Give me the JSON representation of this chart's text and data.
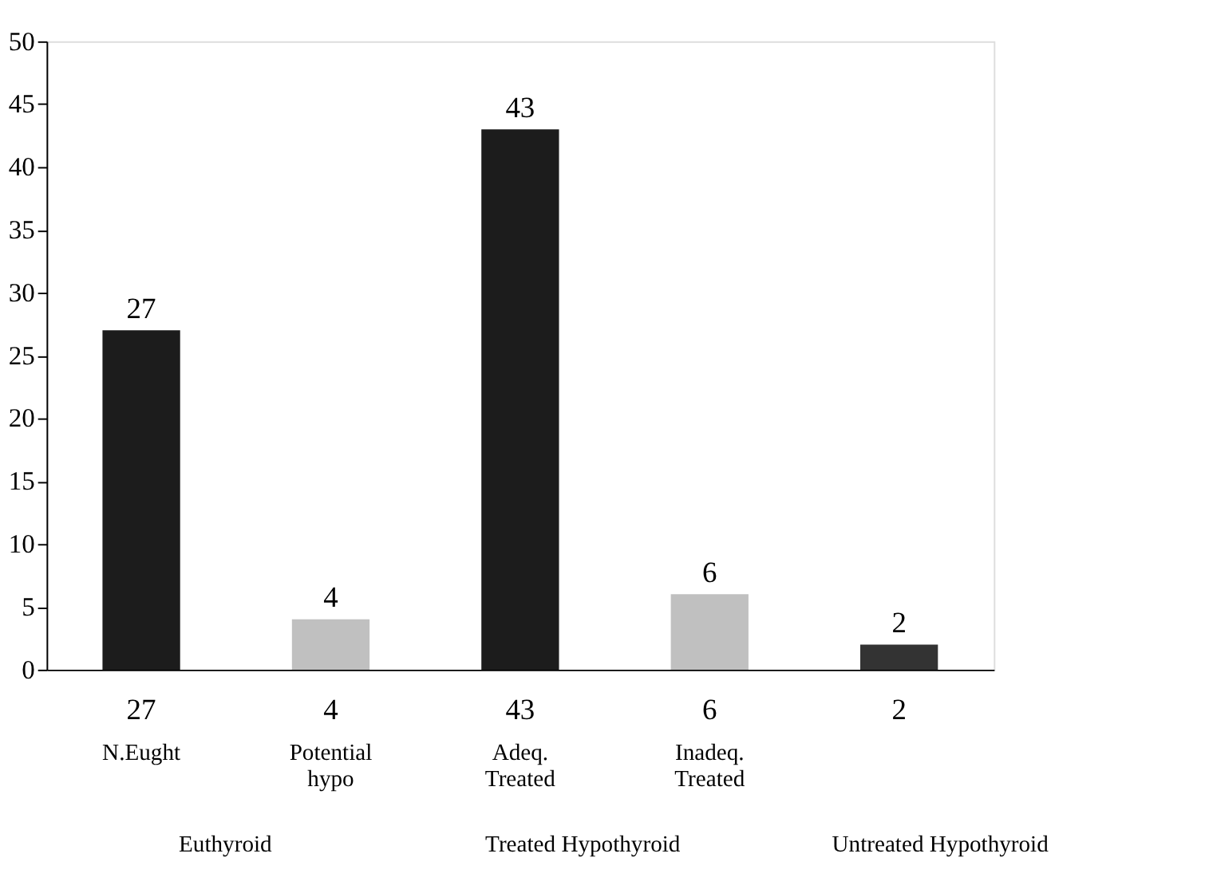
{
  "chart_data": {
    "type": "bar",
    "categories": [
      "N.Eught",
      "Potential hypo",
      "Adeq. Treated",
      "Inadeq. Treated",
      null
    ],
    "values": [
      27,
      4,
      43,
      6,
      2
    ],
    "colors": [
      "#1c1c1c",
      "#c0c0c0",
      "#1c1c1c",
      "#c0c0c0",
      "#333333"
    ],
    "ylim": [
      0,
      50
    ],
    "yticks": [
      0,
      5,
      10,
      15,
      20,
      25,
      30,
      35,
      40,
      45,
      50
    ],
    "data_labels": true,
    "grid": false,
    "legend": false,
    "annotations": [
      "27",
      "4",
      "43",
      "6",
      "2",
      "Euthyroid",
      "Treated Hypothyroid",
      "Untreated Hypothyroid"
    ]
  }
}
